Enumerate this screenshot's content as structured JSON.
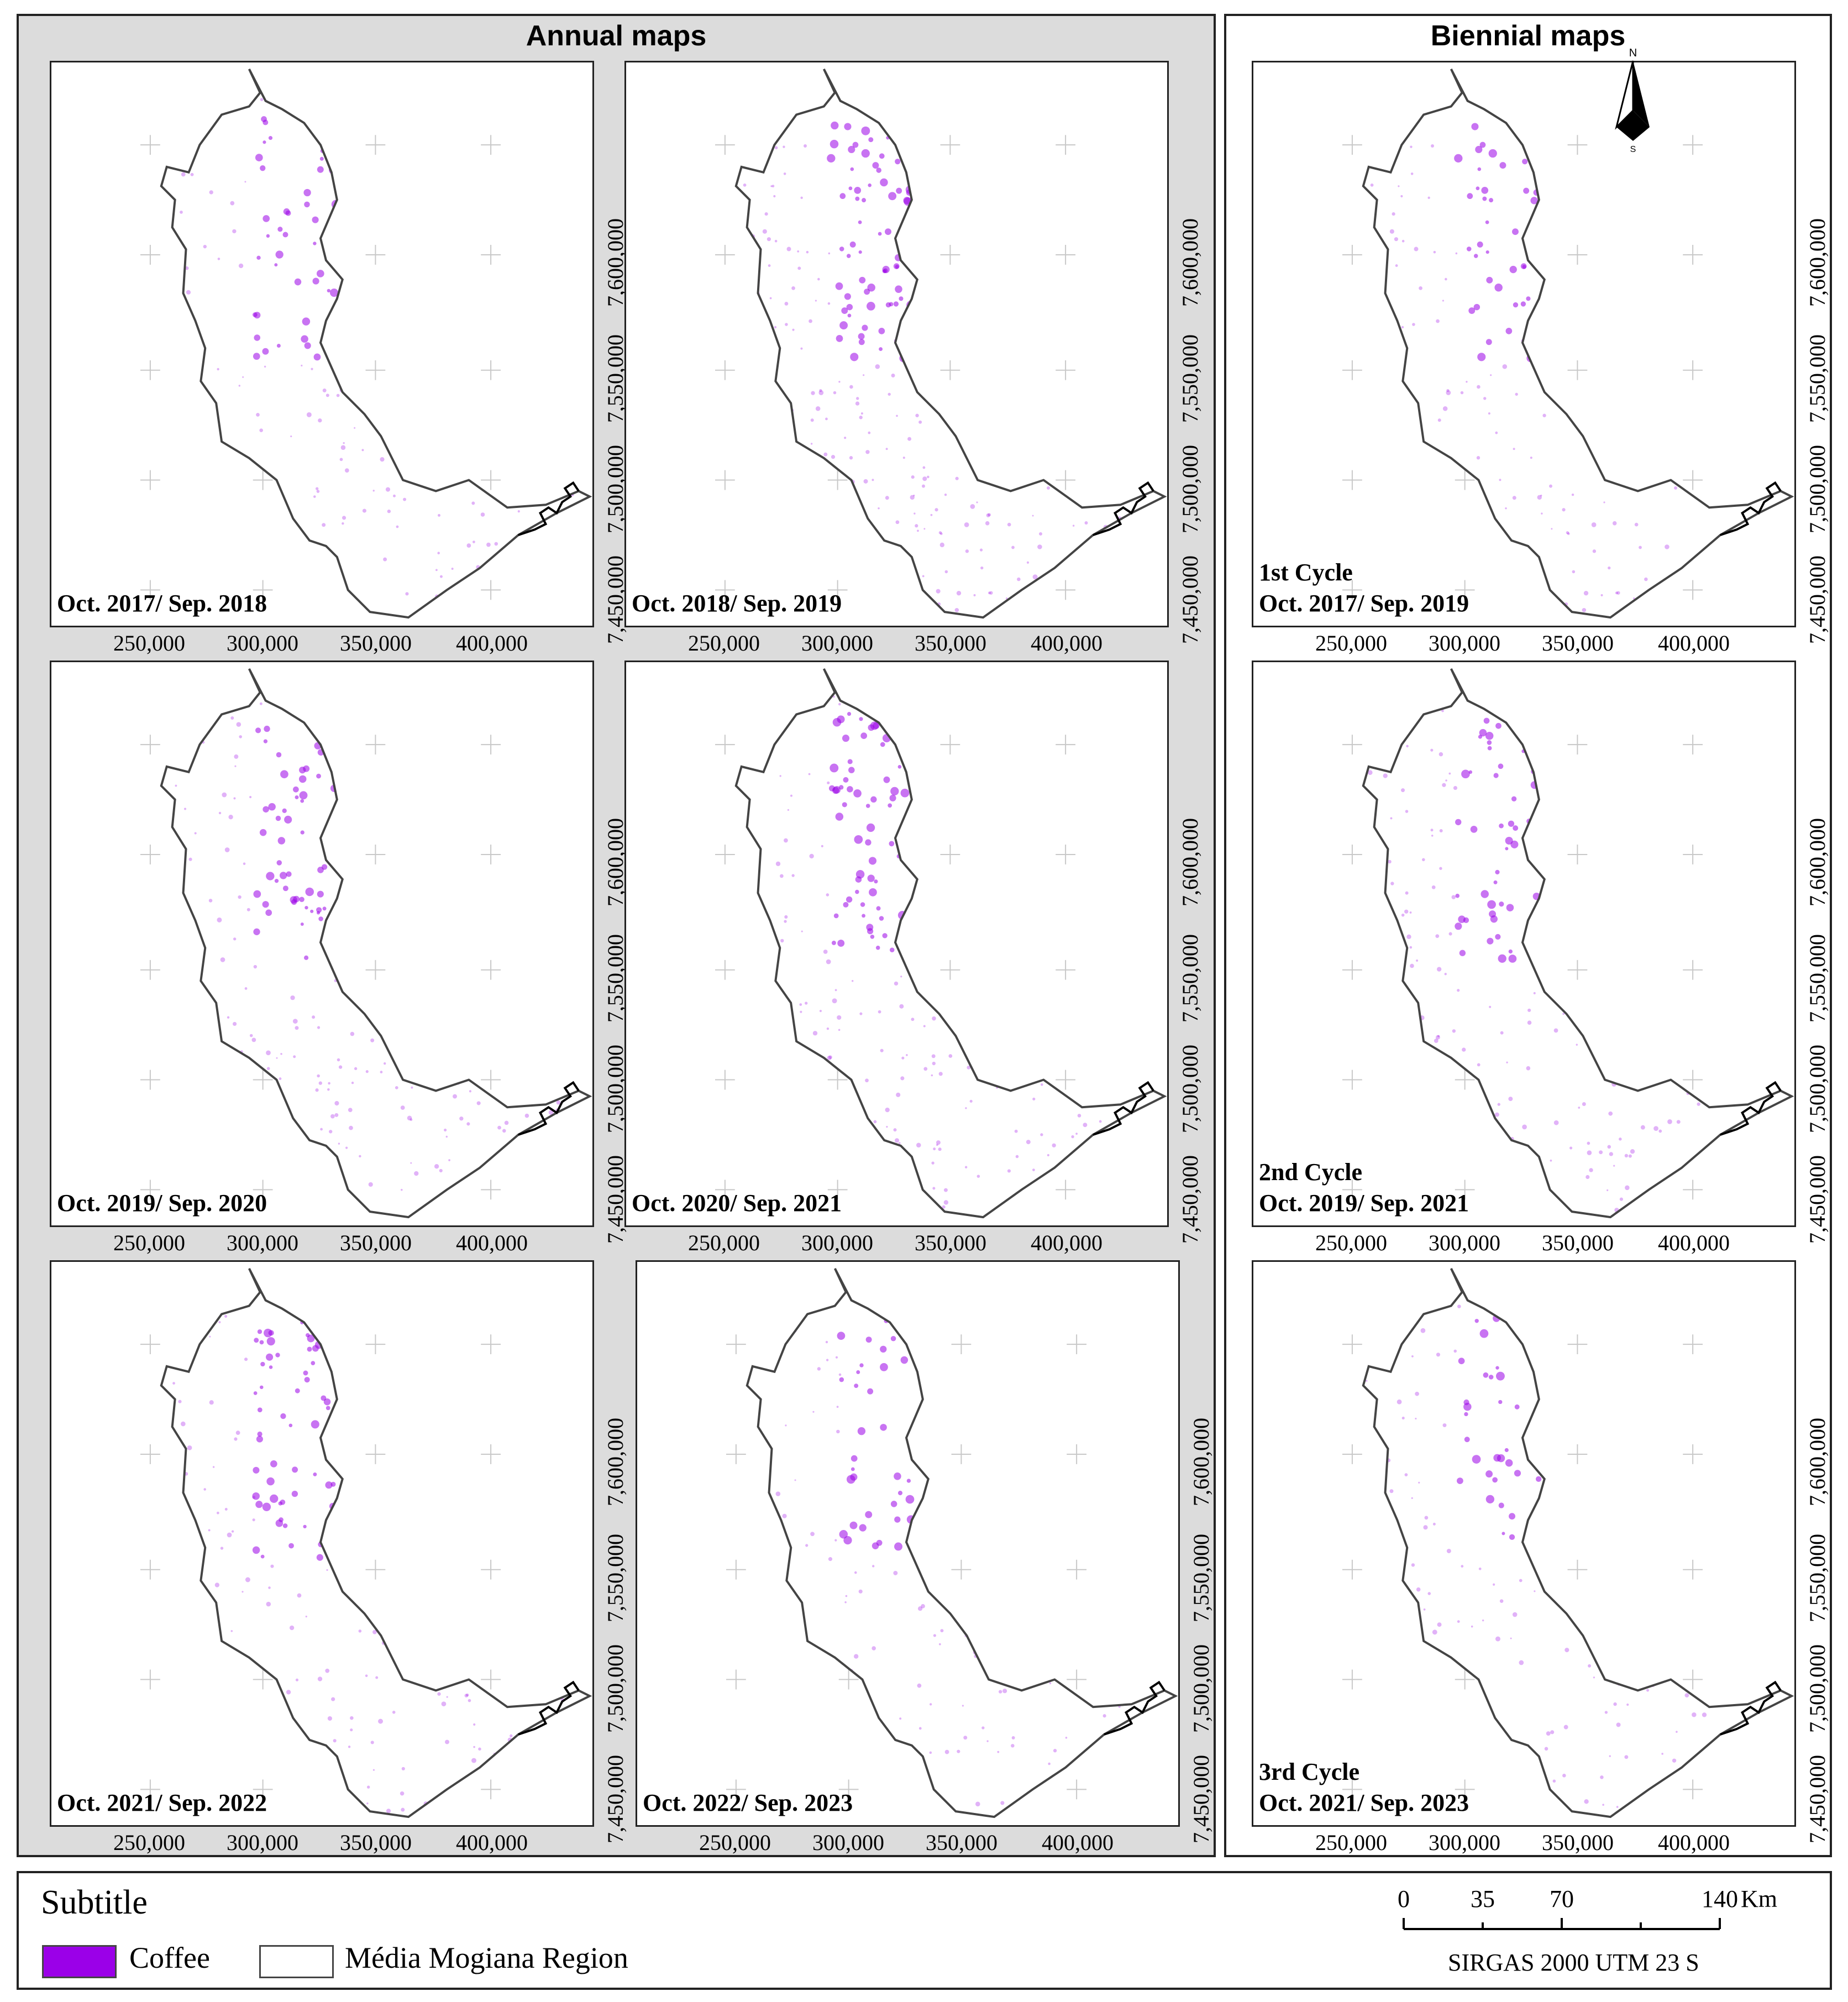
{
  "panels": {
    "annual_title": "Annual maps",
    "biennial_title": "Biennial maps"
  },
  "x_ticks": [
    "250,000",
    "300,000",
    "350,000",
    "400,000"
  ],
  "y_ticks": [
    "7,450,000",
    "7,500,000",
    "7,550,000",
    "7,600,000"
  ],
  "maps": [
    {
      "lines": [
        "Oct. 2017/ Sep. 2018"
      ],
      "coffee_density": 0.55
    },
    {
      "lines": [
        "Oct. 2018/ Sep. 2019"
      ],
      "coffee_density": 0.9
    },
    {
      "lines": [
        "Oct. 2019/ Sep. 2020"
      ],
      "coffee_density": 0.6
    },
    {
      "lines": [
        "Oct. 2020/ Sep. 2021"
      ],
      "coffee_density": 0.7
    },
    {
      "lines": [
        "Oct. 2021/ Sep. 2022"
      ],
      "coffee_density": 0.6
    },
    {
      "lines": [
        "Oct. 2022/ Sep. 2023"
      ],
      "coffee_density": 0.45
    },
    {
      "lines": [
        "1st Cycle",
        "Oct. 2017/ Sep. 2019"
      ],
      "coffee_density": 0.5
    },
    {
      "lines": [
        "2nd Cycle",
        "Oct. 2019/ Sep. 2021"
      ],
      "coffee_density": 0.55
    },
    {
      "lines": [
        "3rd Cycle",
        "Oct. 2021/ Sep. 2023"
      ],
      "coffee_density": 0.45
    }
  ],
  "north": {
    "n": "N",
    "s": "S"
  },
  "legend": {
    "title": "Subtitle",
    "coffee_label": "Coffee",
    "region_label": "Média Mogiana Region",
    "coffee_color": "#9b00e8",
    "region_fill": "#ffffff"
  },
  "scale": {
    "ticks": [
      "0",
      "35",
      "70",
      "140"
    ],
    "unit": "Km",
    "crs": "SIRGAS 2000  UTM  23 S"
  }
}
